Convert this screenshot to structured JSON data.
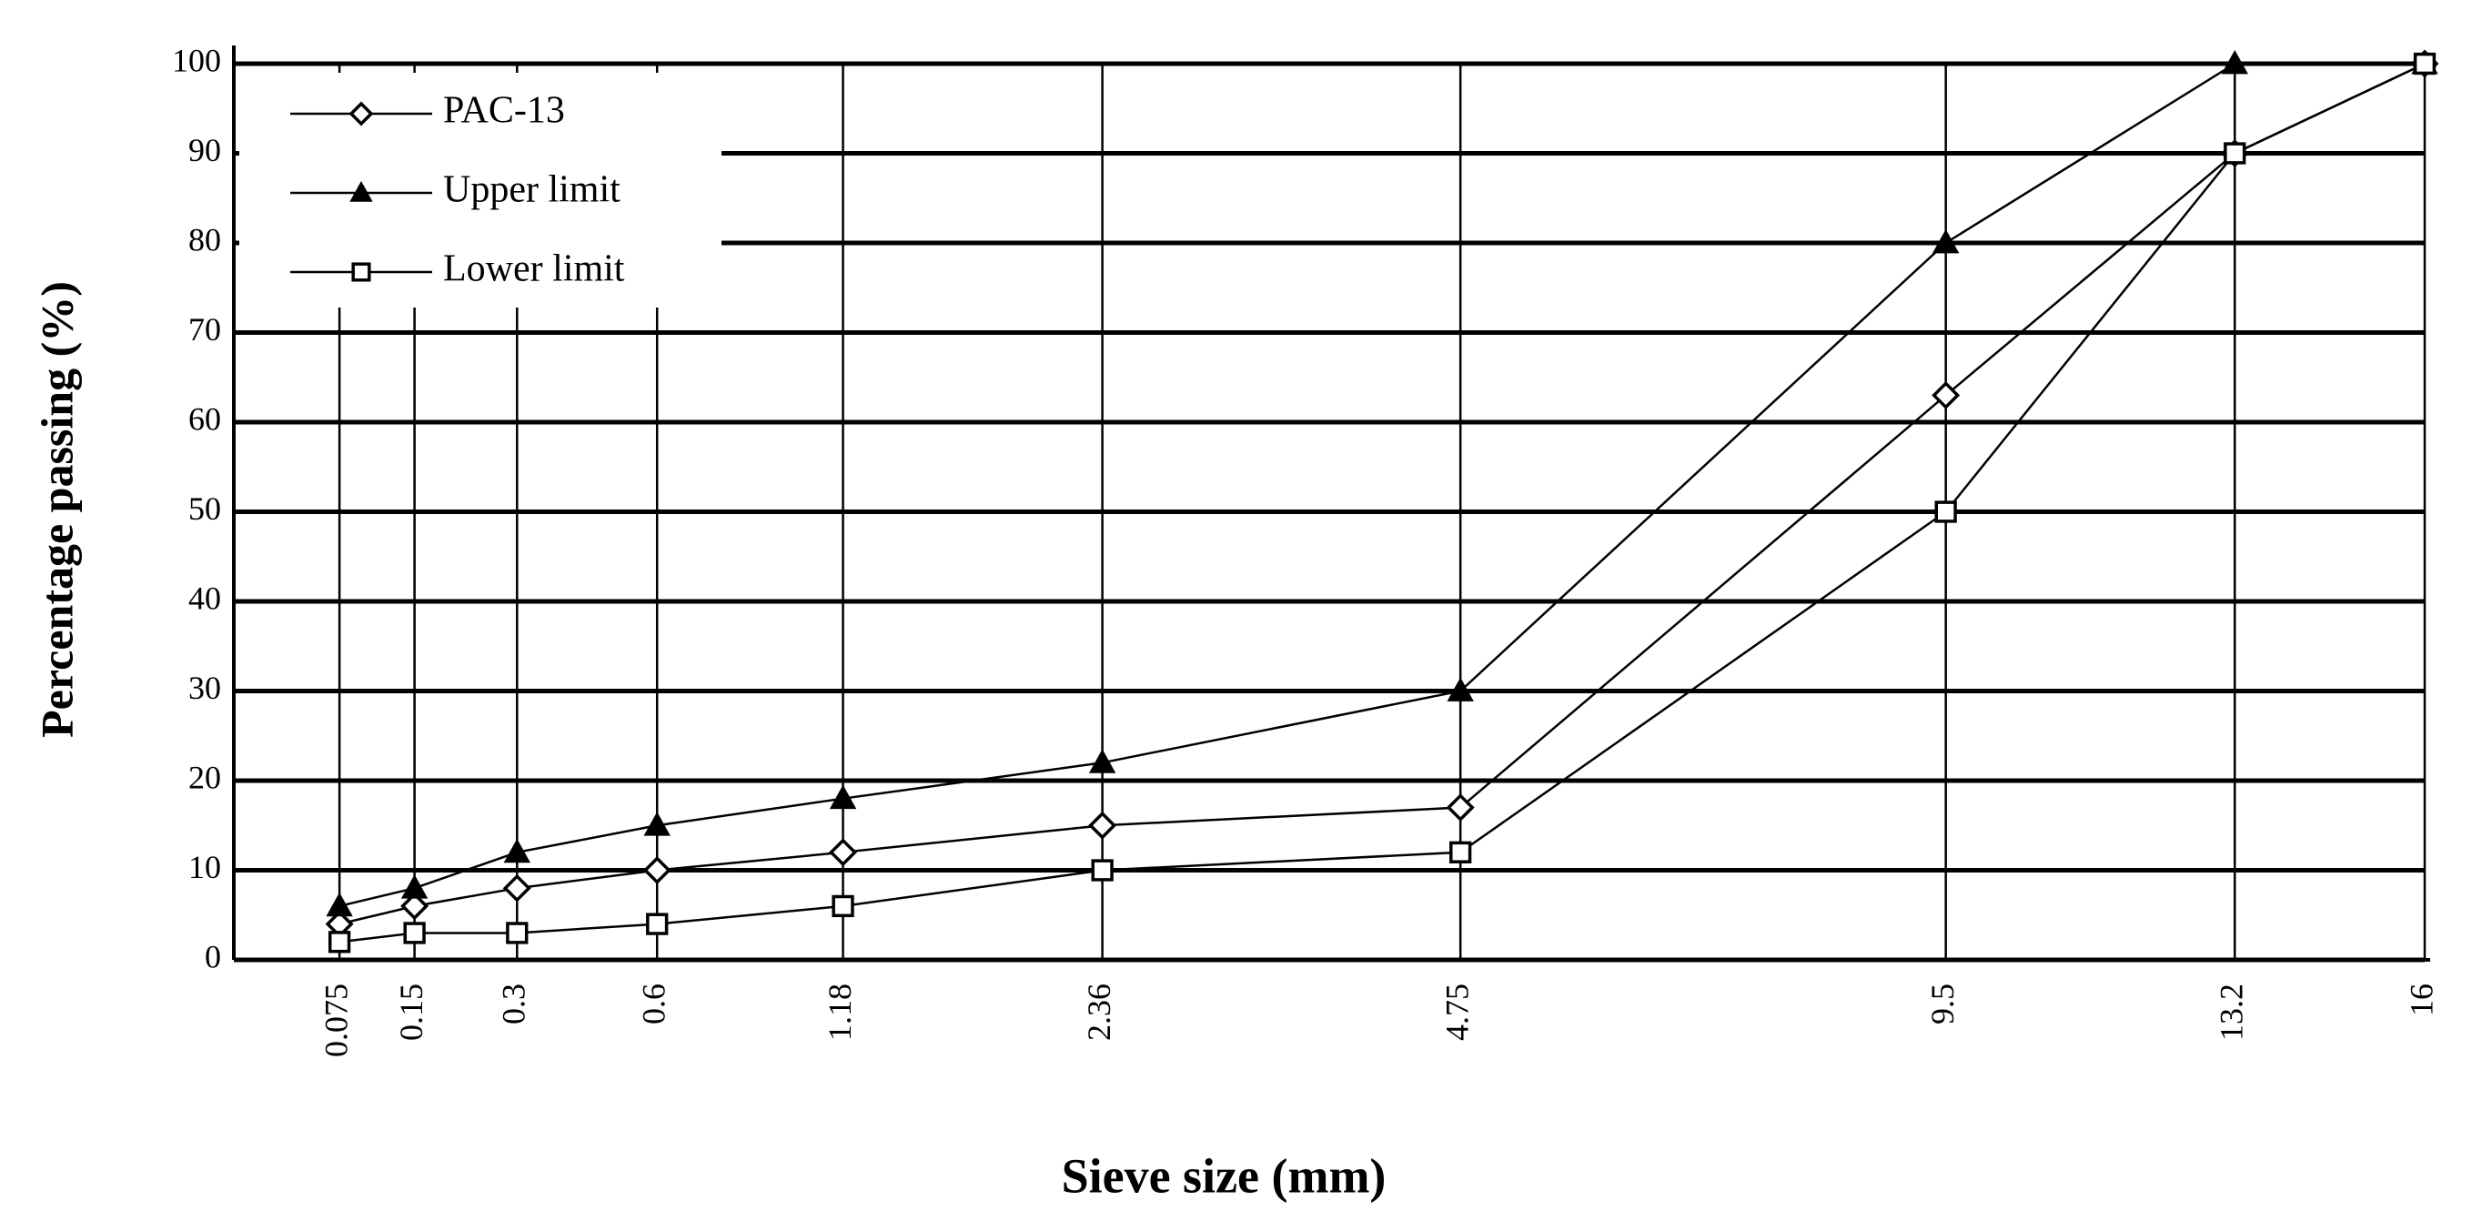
{
  "chart_data": {
    "type": "line",
    "y_label": "Percentage passing (%)",
    "x_label": "Sieve size (mm)",
    "x": [
      0.075,
      0.15,
      0.3,
      0.6,
      1.18,
      2.36,
      4.75,
      9.5,
      13.2,
      16
    ],
    "x_scale": "power",
    "x_scale_exponent": 0.45,
    "xlim": [
      0.015,
      16
    ],
    "xticks": [
      0.075,
      0.15,
      0.3,
      0.6,
      1.18,
      2.36,
      4.75,
      9.5,
      13.2,
      16
    ],
    "ylim": [
      0,
      100
    ],
    "yticks": [
      0,
      10,
      20,
      30,
      40,
      50,
      60,
      70,
      80,
      90,
      100
    ],
    "grid": true,
    "legend": "upper left",
    "series": [
      {
        "name": "PAC-13",
        "color": "#000000",
        "marker": "diamond",
        "values": [
          4,
          6,
          8,
          10,
          12,
          15,
          17,
          63,
          90,
          100
        ]
      },
      {
        "name": "Upper limit",
        "color": "#000000",
        "marker": "triangle",
        "values": [
          6,
          8,
          12,
          15,
          18,
          22,
          30,
          80,
          100,
          100
        ]
      },
      {
        "name": "Lower limit",
        "color": "#000000",
        "marker": "square",
        "values": [
          2,
          3,
          3,
          4,
          6,
          10,
          12,
          50,
          90,
          100
        ]
      }
    ]
  }
}
